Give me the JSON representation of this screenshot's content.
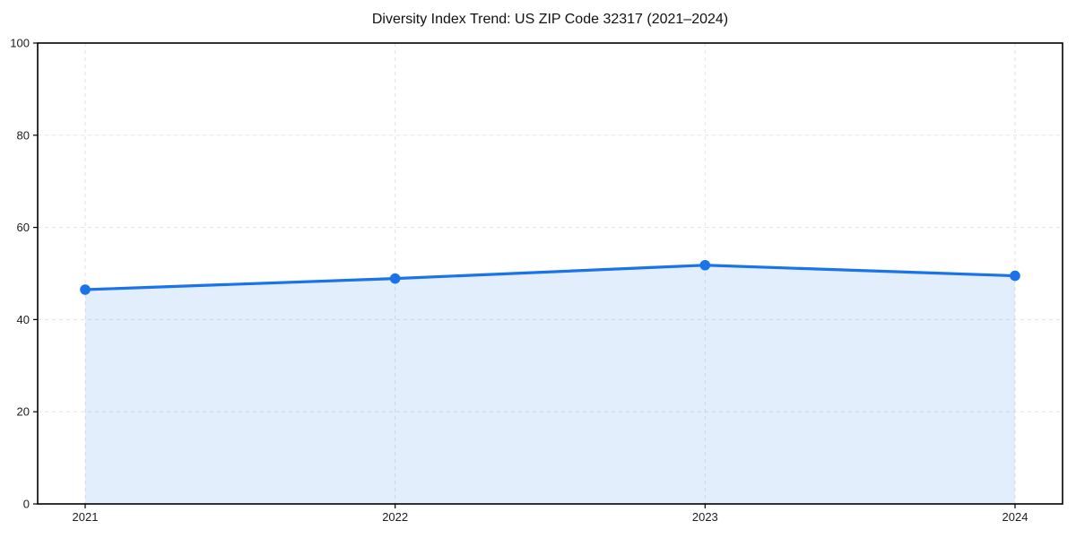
{
  "page": {
    "background": "#ffffff"
  },
  "chart_data": {
    "type": "area",
    "title": "Diversity Index Trend: US ZIP Code 32317 (2021–2024)",
    "x": [
      "2021",
      "2022",
      "2023",
      "2024"
    ],
    "values": [
      46.5,
      48.9,
      51.8,
      49.5
    ],
    "xlabel": "",
    "ylabel": "",
    "ylim": [
      0,
      100
    ],
    "yticks": [
      0,
      20,
      40,
      60,
      80,
      100
    ],
    "grid": true,
    "grid_style": "dashed",
    "legend": "none",
    "line_color": "#1a73e8",
    "marker_color": "#1a73e8",
    "area_opacity": 0.12,
    "grid_color": "#e3e3e3",
    "spine_color": "#000000",
    "text_color": "#1c1c1c"
  }
}
